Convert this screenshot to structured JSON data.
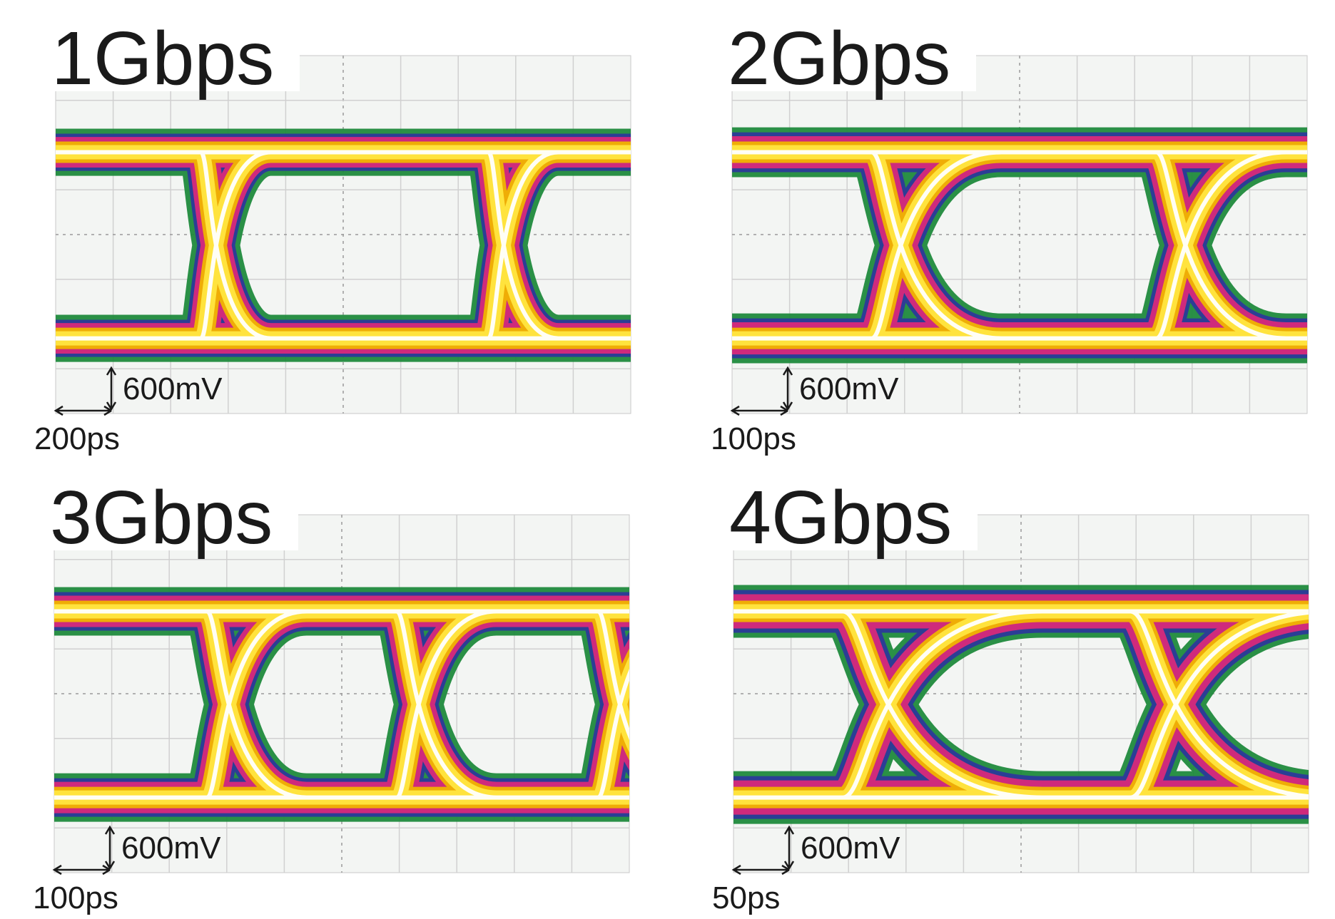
{
  "panels": [
    {
      "title": "1Gbps",
      "voltage_scale": "600mV",
      "time_scale": "200ps"
    },
    {
      "title": "2Gbps",
      "voltage_scale": "600mV",
      "time_scale": "100ps"
    },
    {
      "title": "3Gbps",
      "voltage_scale": "600mV",
      "time_scale": "100ps"
    },
    {
      "title": "4Gbps",
      "voltage_scale": "600mV",
      "time_scale": "50ps"
    }
  ]
}
